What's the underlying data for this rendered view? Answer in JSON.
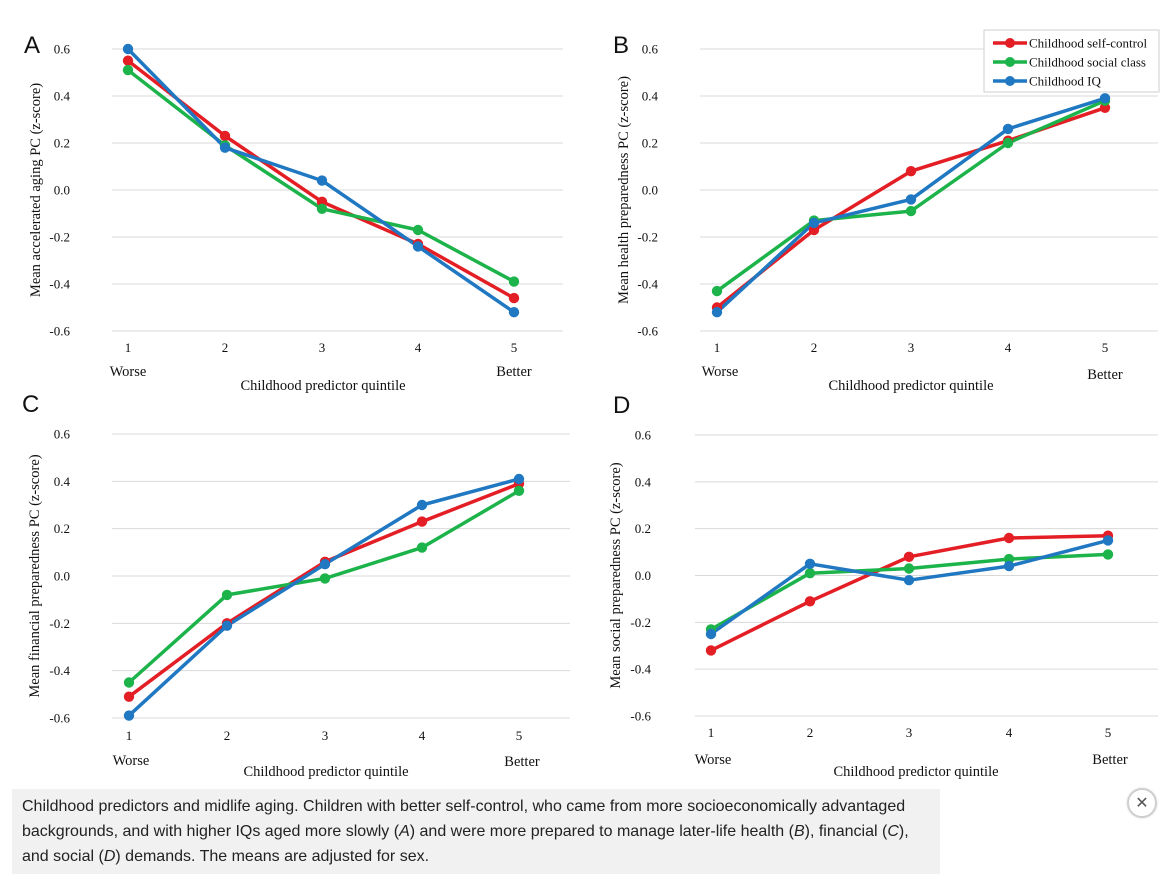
{
  "chart_data": [
    {
      "type": "line",
      "panel": "A",
      "ylabel": "Mean accelerated aging PC (z-score)",
      "xlabel": "Childhood predictor quintile",
      "x": [
        "1",
        "2",
        "3",
        "4",
        "5"
      ],
      "x_extreme_labels": {
        "low": "Worse",
        "high": "Better"
      },
      "ylim": [
        -0.6,
        0.6
      ],
      "yticks": [
        "0.6",
        "0.4",
        "0.2",
        "0.0",
        "-0.2",
        "-0.4",
        "-0.6"
      ],
      "series": [
        {
          "name": "Childhood self-control",
          "color": "#e31e24",
          "values": [
            0.55,
            0.23,
            -0.05,
            -0.23,
            -0.46
          ]
        },
        {
          "name": "Childhood social class",
          "color": "#1db34b",
          "values": [
            0.51,
            0.19,
            -0.08,
            -0.17,
            -0.39
          ]
        },
        {
          "name": "Childhood IQ",
          "color": "#1f78c1",
          "values": [
            0.6,
            0.18,
            0.04,
            -0.24,
            -0.52
          ]
        }
      ]
    },
    {
      "type": "line",
      "panel": "B",
      "ylabel": "Mean health preparedness PC (z-score)",
      "xlabel": "Childhood predictor quintile",
      "x": [
        "1",
        "2",
        "3",
        "4",
        "5"
      ],
      "x_extreme_labels": {
        "low": "Worse",
        "high": "Better"
      },
      "ylim": [
        -0.6,
        0.6
      ],
      "yticks": [
        "0.6",
        "0.4",
        "0.2",
        "0.0",
        "-0.2",
        "-0.4",
        "-0.6"
      ],
      "legend": "top-right",
      "series": [
        {
          "name": "Childhood self-control",
          "color": "#e31e24",
          "values": [
            -0.5,
            -0.17,
            0.08,
            0.21,
            0.35
          ]
        },
        {
          "name": "Childhood social class",
          "color": "#1db34b",
          "values": [
            -0.43,
            -0.13,
            -0.09,
            0.2,
            0.38
          ]
        },
        {
          "name": "Childhood IQ",
          "color": "#1f78c1",
          "values": [
            -0.52,
            -0.14,
            -0.04,
            0.26,
            0.39
          ]
        }
      ]
    },
    {
      "type": "line",
      "panel": "C",
      "ylabel": "Mean financial preparedness PC (z-score)",
      "xlabel": "Childhood predictor quintile",
      "x": [
        "1",
        "2",
        "3",
        "4",
        "5"
      ],
      "x_extreme_labels": {
        "low": "Worse",
        "high": "Better"
      },
      "ylim": [
        -0.6,
        0.6
      ],
      "yticks": [
        "0.6",
        "0.4",
        "0.2",
        "0.0",
        "-0.2",
        "-0.4",
        "-0.6"
      ],
      "series": [
        {
          "name": "Childhood self-control",
          "color": "#e31e24",
          "values": [
            -0.51,
            -0.2,
            0.06,
            0.23,
            0.39
          ]
        },
        {
          "name": "Childhood social class",
          "color": "#1db34b",
          "values": [
            -0.45,
            -0.08,
            -0.01,
            0.12,
            0.36
          ]
        },
        {
          "name": "Childhood IQ",
          "color": "#1f78c1",
          "values": [
            -0.59,
            -0.21,
            0.05,
            0.3,
            0.41
          ]
        }
      ]
    },
    {
      "type": "line",
      "panel": "D",
      "ylabel": "Mean social preparedness PC (z-score)",
      "xlabel": "Childhood predictor quintile",
      "x": [
        "1",
        "2",
        "3",
        "4",
        "5"
      ],
      "x_extreme_labels": {
        "low": "Worse",
        "high": "Better"
      },
      "ylim": [
        -0.6,
        0.6
      ],
      "yticks": [
        "0.6",
        "0.4",
        "0.2",
        "0.0",
        "-0.2",
        "-0.4",
        "-0.6"
      ],
      "series": [
        {
          "name": "Childhood self-control",
          "color": "#e31e24",
          "values": [
            -0.32,
            -0.11,
            0.08,
            0.16,
            0.17
          ]
        },
        {
          "name": "Childhood social class",
          "color": "#1db34b",
          "values": [
            -0.23,
            0.01,
            0.03,
            0.07,
            0.09
          ]
        },
        {
          "name": "Childhood IQ",
          "color": "#1f78c1",
          "values": [
            -0.25,
            0.05,
            -0.02,
            0.04,
            0.15
          ]
        }
      ]
    }
  ],
  "caption": {
    "part1": "Childhood predictors and midlife aging. Children with better self-control, who came from more socioeconomically advantaged backgrounds, and with higher IQs aged more slowly (",
    "a": "A",
    "part2": ") and were more prepared to manage later-life health (",
    "b": "B",
    "part3": "), financial (",
    "c": "C",
    "part4": "), and social (",
    "d": "D",
    "part5": ") demands. The means are adjusted for sex."
  },
  "close_icon": "close-icon"
}
